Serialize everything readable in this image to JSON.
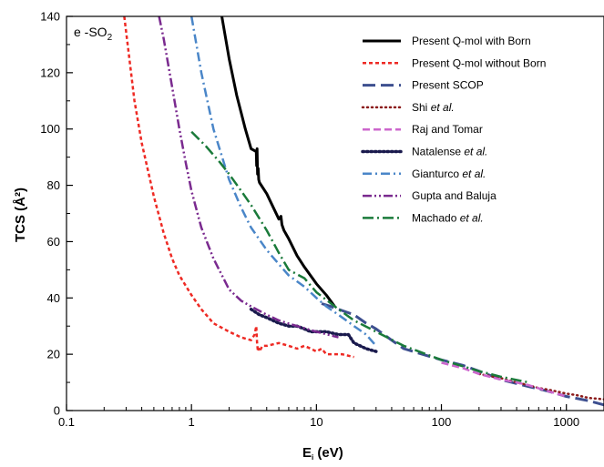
{
  "chart_data": {
    "type": "line",
    "annotation": "e -SO",
    "annotation_sub": "2",
    "xlabel": "E",
    "xlabel_sub": "i",
    "xlabel_unit": "(eV)",
    "ylabel": "TCS (Å²)",
    "x_scale": "log",
    "xlim": [
      0.1,
      2000
    ],
    "ylim": [
      0,
      140
    ],
    "x_ticks": [
      {
        "value": 0.1,
        "label": "0.1"
      },
      {
        "value": 1,
        "label": "1"
      },
      {
        "value": 10,
        "label": "10"
      },
      {
        "value": 100,
        "label": "100"
      },
      {
        "value": 1000,
        "label": "1000"
      }
    ],
    "y_ticks": [
      0,
      20,
      40,
      60,
      80,
      100,
      120,
      140
    ],
    "grid": false,
    "legend_position": "top-right",
    "series": [
      {
        "name": "Present Q-mol with Born",
        "label_parts": [
          {
            "t": "Present Q-mol with Born"
          }
        ],
        "color": "#000000",
        "dash": "solid",
        "width": 3,
        "x": [
          1.75,
          2.0,
          2.3,
          2.7,
          3.0,
          3.3,
          3.32,
          3.35,
          3.38,
          3.42,
          3.45,
          3.5,
          4.0,
          5.0,
          5.2,
          5.3,
          5.5,
          6.0,
          7.0,
          8.0,
          10.0,
          12.0,
          14.0
        ],
        "y": [
          140,
          125,
          112,
          100,
          93,
          92,
          87,
          93,
          84,
          86,
          82,
          81,
          77,
          68,
          69,
          66,
          64,
          61,
          55,
          51,
          45,
          41,
          37
        ]
      },
      {
        "name": "Present Q-mol without Born",
        "label_parts": [
          {
            "t": "Present Q-mol without Born"
          }
        ],
        "color": "#ee2a24",
        "dash": "4,3",
        "width": 2.5,
        "x": [
          0.29,
          0.35,
          0.4,
          0.5,
          0.6,
          0.7,
          0.8,
          1.0,
          1.2,
          1.5,
          2.0,
          2.5,
          3.0,
          3.2,
          3.3,
          3.35,
          3.4,
          3.45,
          3.5,
          3.7,
          4.0,
          5.0,
          6.0,
          7.0,
          8.0,
          9.0,
          10.0,
          11.0,
          12.0,
          14.0,
          16.0,
          20.0
        ],
        "y": [
          140,
          110,
          95,
          76,
          63,
          54,
          48,
          41,
          36,
          31,
          28,
          26,
          25,
          27,
          30,
          24,
          21,
          22,
          21,
          23,
          23,
          24,
          23,
          22,
          23,
          22,
          21,
          22,
          20,
          20,
          20,
          19
        ]
      },
      {
        "name": "Present SCOP",
        "label_parts": [
          {
            "t": "Present SCOP"
          }
        ],
        "color": "#3d4f8f",
        "dash": "14,6",
        "width": 3,
        "x": [
          11,
          13,
          15,
          20,
          25,
          30,
          40,
          50,
          70,
          100,
          150,
          200,
          300,
          500,
          700,
          1000,
          1500,
          2000
        ],
        "y": [
          38,
          37,
          36,
          34,
          31,
          29,
          25,
          22,
          20,
          18,
          16,
          14,
          11,
          8.5,
          7,
          5,
          3.5,
          2
        ]
      },
      {
        "name": "Shi et al.",
        "label_parts": [
          {
            "t": "Shi "
          },
          {
            "t": "et al.",
            "italic": true
          }
        ],
        "color": "#8b1a1a",
        "dash": "1,4",
        "width": 2.5,
        "x": [
          200,
          300,
          400,
          500,
          600,
          700,
          800,
          1000,
          1200,
          1500,
          2000
        ],
        "y": [
          13,
          11.5,
          10,
          9,
          8,
          7.5,
          7,
          6,
          5.5,
          4.5,
          4
        ]
      },
      {
        "name": "Raj and Tomar",
        "label_parts": [
          {
            "t": "Raj and Tomar"
          }
        ],
        "color": "#cc66cc",
        "dash": "8,4",
        "width": 2.5,
        "x": [
          100,
          150,
          200,
          300,
          400,
          500,
          700,
          1000
        ],
        "y": [
          17,
          15,
          13,
          11,
          10,
          9,
          7,
          5
        ]
      },
      {
        "name": "Natalense et al.",
        "label_parts": [
          {
            "t": "Natalense "
          },
          {
            "t": "et al.",
            "italic": true
          }
        ],
        "color": "#1a1a4d",
        "dash": "1.5,3",
        "width": 3.5,
        "x": [
          3.0,
          3.5,
          4.0,
          5.0,
          6.0,
          7.0,
          8.0,
          9.0,
          10.0,
          12.0,
          15.0,
          18.0,
          20.0,
          25.0,
          30.0
        ],
        "y": [
          36,
          34,
          33,
          31,
          30,
          30,
          29,
          28,
          28,
          28,
          27,
          27,
          24,
          22,
          21
        ]
      },
      {
        "name": "Gianturco et al.",
        "label_parts": [
          {
            "t": "Gianturco "
          },
          {
            "t": "et al.",
            "italic": true
          }
        ],
        "color": "#4a86c8",
        "dash": "10,4,2,4",
        "width": 2.5,
        "x": [
          1.0,
          1.2,
          1.5,
          2.0,
          2.5,
          3.0,
          4.0,
          5.0,
          6.0,
          8.0,
          10.0,
          12.0,
          15.0,
          20.0,
          25.0,
          30.0
        ],
        "y": [
          140,
          120,
          100,
          82,
          72,
          65,
          57,
          52,
          48,
          44,
          40,
          37,
          34,
          30,
          27,
          23
        ]
      },
      {
        "name": "Gupta and Baluja",
        "label_parts": [
          {
            "t": "Gupta and Baluja"
          }
        ],
        "color": "#7a2a8f",
        "dash": "10,3,2,3,2,3",
        "width": 2.5,
        "x": [
          0.55,
          0.6,
          0.7,
          0.8,
          0.9,
          1.0,
          1.2,
          1.5,
          2.0,
          2.5,
          3.0,
          4.0,
          5.0,
          7.0,
          10.0,
          15.0
        ],
        "y": [
          140,
          132,
          115,
          100,
          88,
          78,
          65,
          54,
          43,
          39,
          37,
          34,
          32,
          30,
          28,
          26
        ]
      },
      {
        "name": "Machado et al.",
        "label_parts": [
          {
            "t": "Machado "
          },
          {
            "t": "et al.",
            "italic": true
          }
        ],
        "color": "#1a7a3a",
        "dash": "12,4,2,4",
        "width": 2.5,
        "x": [
          1.0,
          1.3,
          1.7,
          2.0,
          2.5,
          3.0,
          4.0,
          5.0,
          6.0,
          8.0,
          10.0,
          15.0,
          20.0,
          30.0,
          50.0,
          100.0,
          200.0,
          300.0,
          500.0
        ],
        "y": [
          99,
          94,
          88,
          84,
          78,
          73,
          64,
          56,
          50,
          47,
          42,
          36,
          32,
          28,
          23,
          18,
          14,
          12,
          10
        ]
      }
    ]
  }
}
